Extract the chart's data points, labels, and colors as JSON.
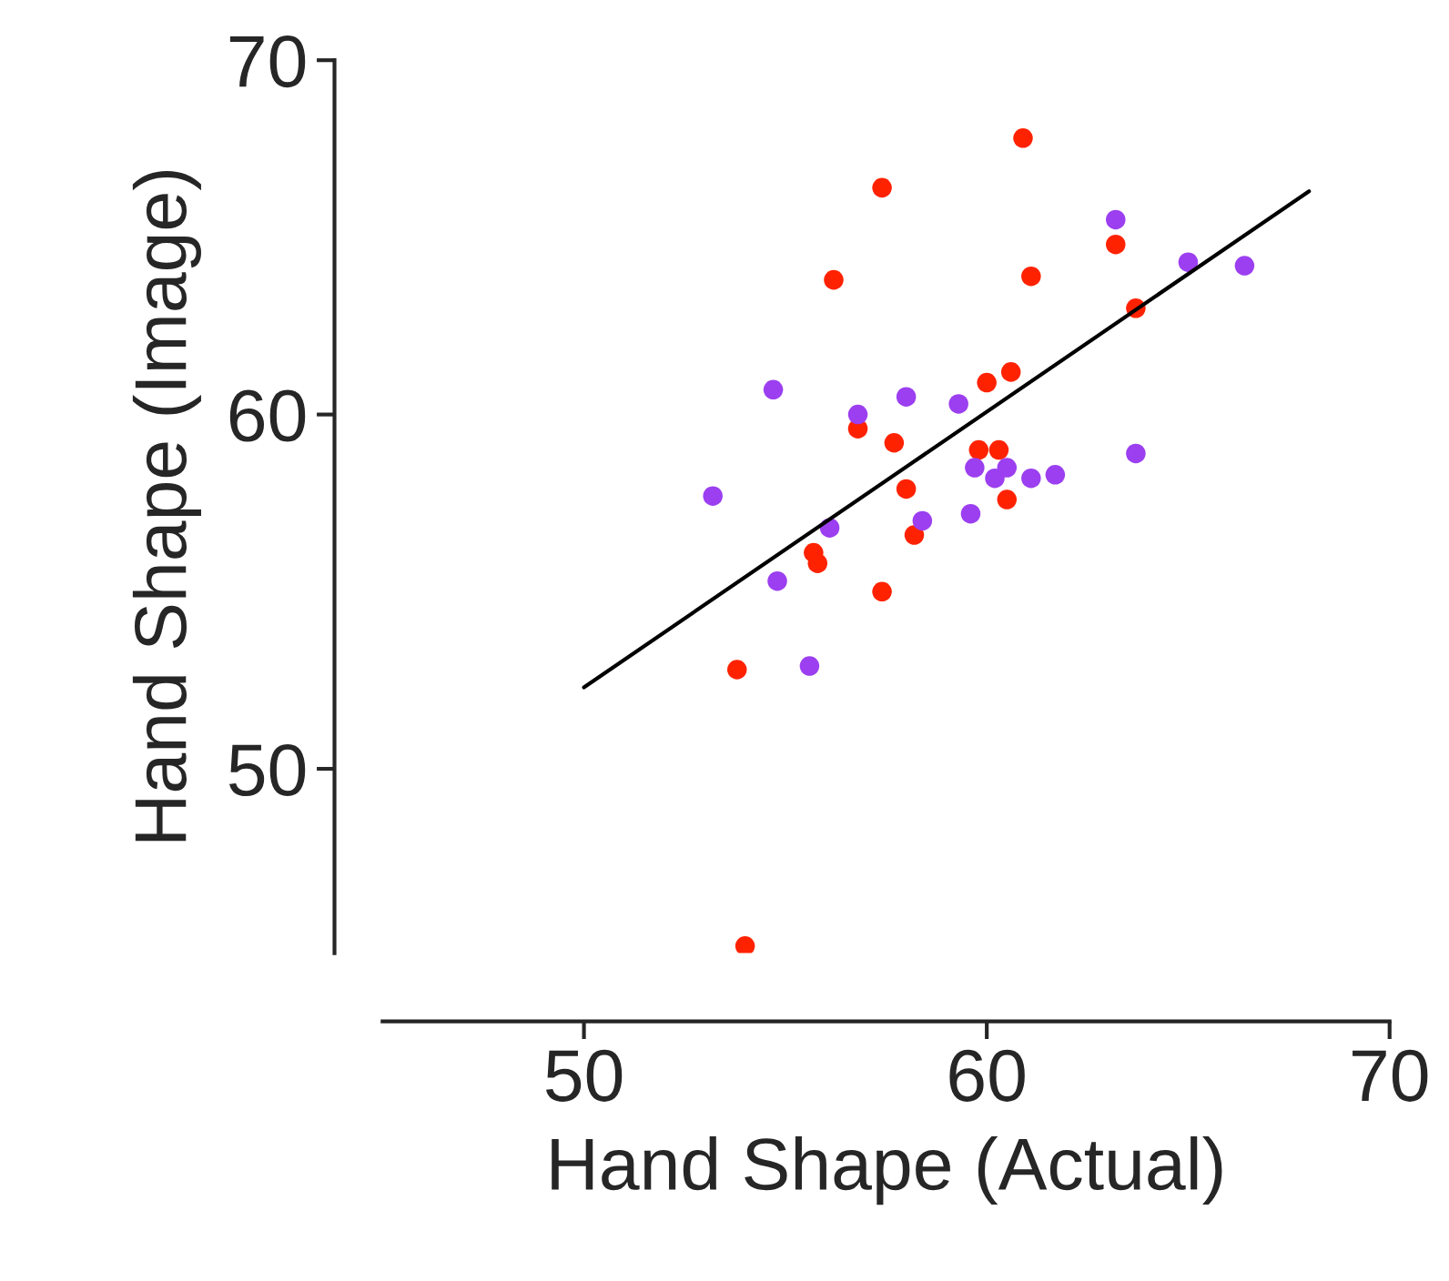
{
  "chart_data": {
    "type": "scatter",
    "xlabel": "Hand Shape (Actual)",
    "ylabel": "Hand Shape (Image)",
    "xlim": [
      45,
      70
    ],
    "ylim": [
      44.8,
      70
    ],
    "xticks": [
      50,
      60,
      70
    ],
    "yticks": [
      50,
      60,
      70
    ],
    "grid": false,
    "legend": false,
    "series": [
      {
        "marker": "circle",
        "color": "#ff2200",
        "x": [
          60.9,
          57.4,
          56.2,
          61.1,
          63.2,
          63.7,
          60.6,
          60.0,
          56.8,
          57.7,
          59.8,
          60.3,
          58.0,
          60.5,
          58.2,
          55.7,
          55.8,
          57.4,
          53.8,
          54.0
        ],
        "values": [
          67.8,
          66.4,
          63.8,
          63.9,
          64.8,
          63.0,
          61.2,
          60.9,
          59.6,
          59.2,
          59.0,
          59.0,
          57.9,
          57.6,
          56.6,
          56.1,
          55.8,
          55.0,
          52.8,
          45.0
        ]
      },
      {
        "marker": "circle",
        "color": "#9b3ff0",
        "x": [
          63.2,
          54.7,
          53.2,
          56.8,
          58.0,
          59.3,
          59.7,
          60.2,
          60.5,
          61.1,
          61.7,
          63.7,
          59.6,
          58.4,
          56.1,
          54.8,
          55.6,
          65.0,
          66.4
        ],
        "values": [
          65.5,
          60.7,
          57.7,
          60.0,
          60.5,
          60.3,
          58.5,
          58.2,
          58.5,
          58.2,
          58.3,
          58.9,
          57.2,
          57.0,
          56.8,
          55.3,
          52.9,
          64.3,
          64.2
        ]
      },
      {
        "type": "line",
        "color": "#000000",
        "x": [
          50.0,
          68.0
        ],
        "values": [
          52.3,
          66.3
        ]
      }
    ]
  }
}
